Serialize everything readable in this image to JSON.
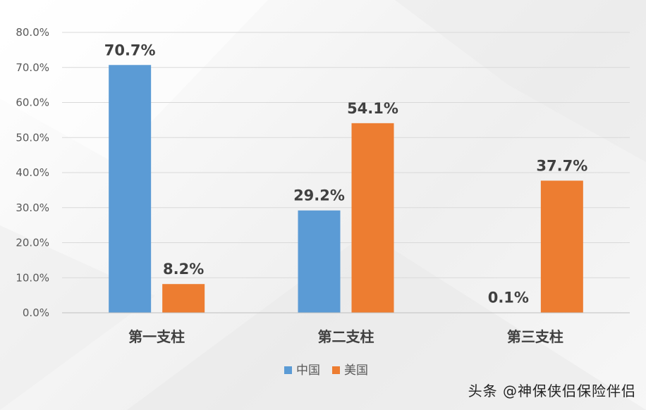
{
  "chart_data": {
    "type": "bar",
    "categories": [
      "第一支柱",
      "第二支柱",
      "第三支柱"
    ],
    "series": [
      {
        "name": "中国",
        "values": [
          70.7,
          29.2,
          0.1
        ],
        "labels": [
          "70.7%",
          "29.2%",
          "0.1%"
        ],
        "color": "#5B9BD5"
      },
      {
        "name": "美国",
        "values": [
          8.2,
          54.1,
          37.7
        ],
        "labels": [
          "8.2%",
          "54.1%",
          "37.7%"
        ],
        "color": "#ED7D31"
      }
    ],
    "yticks": [
      "0.0%",
      "10.0%",
      "20.0%",
      "30.0%",
      "40.0%",
      "50.0%",
      "60.0%",
      "70.0%",
      "80.0%"
    ],
    "ylim": [
      0,
      80
    ],
    "grid": true,
    "legend_position": "bottom"
  },
  "watermark": "头条 @神保侠侣保险伴侣"
}
